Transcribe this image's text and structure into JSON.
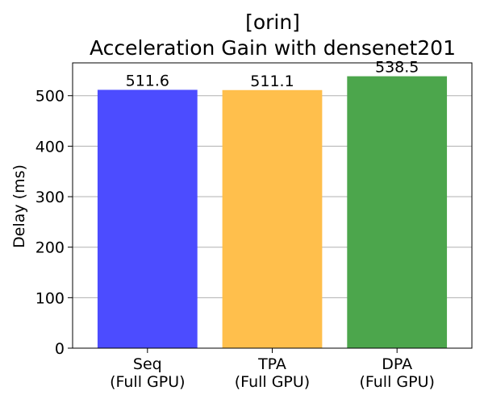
{
  "chart_data": {
    "type": "bar",
    "title_line1": "[orin]",
    "title_line2": "Acceleration Gain with densenet201",
    "xlabel": "",
    "ylabel": "Delay (ms)",
    "categories": [
      [
        "Seq",
        "(Full GPU)"
      ],
      [
        "TPA",
        "(Full GPU)"
      ],
      [
        "DPA",
        "(Full GPU)"
      ]
    ],
    "values": [
      511.6,
      511.1,
      538.5
    ],
    "data_labels": [
      "511.6",
      "511.1",
      "538.5"
    ],
    "bar_colors": [
      "#4c4cff",
      "#ffbf4c",
      "#4ca64c"
    ],
    "ylim": [
      0,
      565
    ],
    "yticks": [
      0,
      100,
      200,
      300,
      400,
      500
    ],
    "grid": "y-major",
    "legend": "none"
  }
}
